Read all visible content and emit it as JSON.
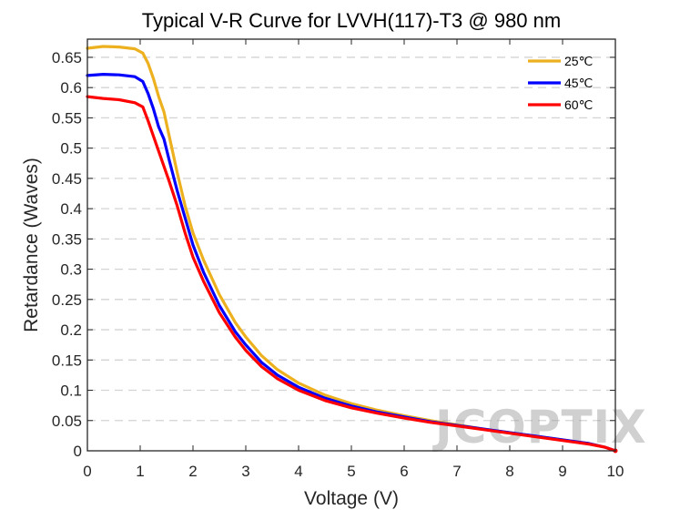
{
  "chart_data": {
    "type": "line",
    "title": "Typical V-R Curve for LVVH(117)-T3 @ 980 nm",
    "xlabel": "Voltage (V)",
    "ylabel": "Retardance (Waves)",
    "xlim": [
      0,
      10
    ],
    "ylim": [
      0,
      0.68
    ],
    "x_ticks": [
      "0",
      "1",
      "2",
      "3",
      "4",
      "5",
      "6",
      "7",
      "8",
      "9",
      "10"
    ],
    "y_ticks": [
      "0",
      "0.05",
      "0.1",
      "0.15",
      "0.2",
      "0.25",
      "0.3",
      "0.35",
      "0.4",
      "0.45",
      "0.5",
      "0.55",
      "0.6",
      "0.65"
    ],
    "grid": "horizontal dashed",
    "legend_position": "top-right",
    "watermark": "JCOPTIX",
    "series": [
      {
        "name": "25℃",
        "color": "#EDB120",
        "x": [
          0,
          0.3,
          0.6,
          0.9,
          1.05,
          1.15,
          1.25,
          1.35,
          1.45,
          1.55,
          1.7,
          1.85,
          2.0,
          2.2,
          2.5,
          2.8,
          3.0,
          3.3,
          3.6,
          4.0,
          4.5,
          5.0,
          5.5,
          6.0,
          6.5,
          7.0,
          7.5,
          8.0,
          8.5,
          9.0,
          9.5,
          9.8,
          10.0
        ],
        "y": [
          0.665,
          0.668,
          0.667,
          0.664,
          0.657,
          0.64,
          0.615,
          0.585,
          0.56,
          0.52,
          0.46,
          0.405,
          0.36,
          0.315,
          0.258,
          0.212,
          0.188,
          0.157,
          0.134,
          0.112,
          0.092,
          0.078,
          0.067,
          0.058,
          0.05,
          0.043,
          0.036,
          0.03,
          0.024,
          0.018,
          0.012,
          0.006,
          0.0
        ]
      },
      {
        "name": "45℃",
        "color": "#0000FF",
        "x": [
          0,
          0.3,
          0.6,
          0.9,
          1.05,
          1.15,
          1.25,
          1.35,
          1.45,
          1.55,
          1.7,
          1.85,
          2.0,
          2.2,
          2.5,
          2.8,
          3.0,
          3.3,
          3.6,
          4.0,
          4.5,
          5.0,
          5.5,
          6.0,
          6.5,
          7.0,
          7.5,
          8.0,
          8.5,
          9.0,
          9.5,
          9.8,
          10.0
        ],
        "y": [
          0.62,
          0.622,
          0.621,
          0.618,
          0.61,
          0.59,
          0.565,
          0.535,
          0.515,
          0.48,
          0.43,
          0.385,
          0.34,
          0.295,
          0.24,
          0.197,
          0.175,
          0.146,
          0.125,
          0.105,
          0.087,
          0.074,
          0.064,
          0.056,
          0.048,
          0.042,
          0.036,
          0.03,
          0.024,
          0.018,
          0.012,
          0.006,
          0.0
        ]
      },
      {
        "name": "60℃",
        "color": "#FF0000",
        "x": [
          0,
          0.3,
          0.6,
          0.9,
          1.05,
          1.15,
          1.25,
          1.35,
          1.45,
          1.55,
          1.7,
          1.85,
          2.0,
          2.2,
          2.5,
          2.8,
          3.0,
          3.3,
          3.6,
          4.0,
          4.5,
          5.0,
          5.5,
          6.0,
          6.5,
          7.0,
          7.5,
          8.0,
          8.5,
          9.0,
          9.5,
          9.8,
          10.0
        ],
        "y": [
          0.585,
          0.582,
          0.58,
          0.575,
          0.568,
          0.545,
          0.52,
          0.495,
          0.47,
          0.445,
          0.405,
          0.36,
          0.32,
          0.28,
          0.228,
          0.188,
          0.166,
          0.139,
          0.119,
          0.1,
          0.083,
          0.071,
          0.062,
          0.054,
          0.047,
          0.041,
          0.035,
          0.029,
          0.023,
          0.017,
          0.011,
          0.006,
          0.0
        ]
      }
    ]
  }
}
